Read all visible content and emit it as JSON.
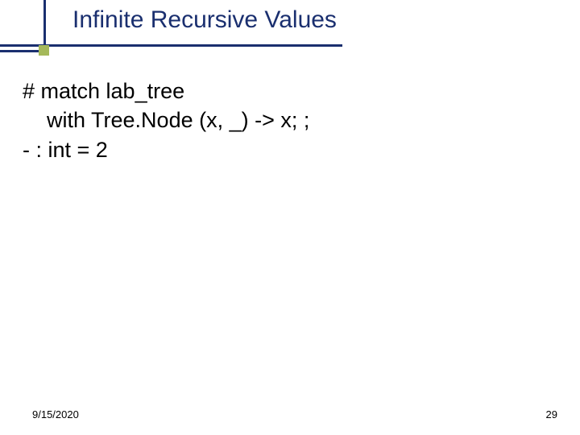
{
  "slide": {
    "title": "Infinite Recursive Values",
    "title_color": "#1a2f6f",
    "title_fontsize": 30,
    "accent_color": "#a5b95a",
    "line_color": "#1a2f6f",
    "background_color": "#ffffff"
  },
  "code": {
    "line1": "# match lab_tree",
    "line2": "    with Tree.Node (x, _) -> x; ;",
    "line3": "- : int = 2",
    "fontsize": 27,
    "text_color": "#000000"
  },
  "footer": {
    "date": "9/15/2020",
    "page": "29",
    "fontsize": 13
  }
}
